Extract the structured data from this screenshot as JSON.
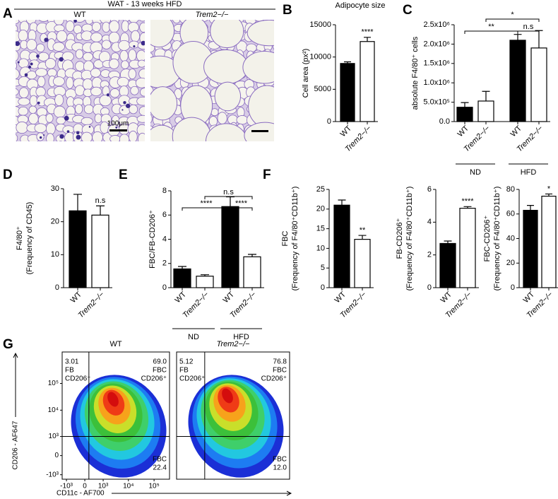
{
  "figure": {
    "panel_labels": [
      "A",
      "B",
      "C",
      "D",
      "E",
      "F",
      "G"
    ],
    "histology": {
      "title": "WAT - 13 weeks HFD",
      "labels": [
        "WT",
        "Trem2−/−"
      ],
      "scale_bar": "100μm"
    }
  },
  "chart_data": [
    {
      "type": "bar",
      "title": "Adipocyte size",
      "ylabel": "Cell area (px²)",
      "categories": [
        "WT",
        "Trem2−/−"
      ],
      "values": [
        9000,
        12400
      ],
      "errors": [
        250,
        650
      ],
      "colors": [
        "#000000",
        "#ffffff"
      ],
      "ylim": [
        0,
        15000
      ],
      "yticks": [
        0,
        5000,
        10000,
        15000
      ],
      "annotations": [
        {
          "text": "****",
          "bar": 1
        }
      ]
    },
    {
      "type": "bar",
      "ylabel": "absolute F4/80⁺ cells",
      "categories": [
        "WT",
        "Trem2−/−",
        "WT",
        "Trem2−/−"
      ],
      "groups": [
        "ND",
        "HFD"
      ],
      "values": [
        370000,
        530000,
        2100000,
        1900000
      ],
      "errors": [
        120000,
        250000,
        150000,
        450000
      ],
      "colors": [
        "#000000",
        "#ffffff",
        "#000000",
        "#ffffff"
      ],
      "ylim": [
        0,
        2500000
      ],
      "yticks": [
        {
          "value": 0,
          "label": "0.0"
        },
        {
          "value": 500000,
          "label": "5.0x10⁵"
        },
        {
          "value": 1000000,
          "label": "1.0x10⁶"
        },
        {
          "value": 1500000,
          "label": "1.5x10⁶"
        },
        {
          "value": 2000000,
          "label": "2.0x10⁶"
        },
        {
          "value": 2500000,
          "label": "2.5x10⁶"
        }
      ],
      "brackets": [
        {
          "text": "**",
          "bars": [
            0,
            2
          ]
        },
        {
          "text": "*",
          "bars": [
            1,
            3
          ]
        },
        {
          "text": "n.s",
          "bars": [
            2,
            3
          ]
        }
      ]
    },
    {
      "type": "bar",
      "ylabel": [
        "F4/80⁺",
        "(Frequency of CD45)"
      ],
      "categories": [
        "WT",
        "Trem2−/−"
      ],
      "values": [
        23.3,
        22
      ],
      "errors": [
        5,
        2.8
      ],
      "colors": [
        "#000000",
        "#ffffff"
      ],
      "ylim": [
        0,
        30
      ],
      "yticks": [
        0,
        10,
        20,
        30
      ],
      "annotations": [
        {
          "text": "n.s",
          "bar": 1
        }
      ]
    },
    {
      "type": "bar",
      "ylabel": "FBC/FB-CD206⁺",
      "categories": [
        "WT",
        "Trem2−/−",
        "WT",
        "Trem2−/−"
      ],
      "groups": [
        "ND",
        "HFD"
      ],
      "values": [
        1.55,
        0.95,
        6.7,
        2.55
      ],
      "errors": [
        0.2,
        0.12,
        0.8,
        0.2
      ],
      "colors": [
        "#000000",
        "#ffffff",
        "#000000",
        "#ffffff"
      ],
      "ylim": [
        0,
        8
      ],
      "yticks": [
        0,
        2,
        4,
        6,
        8
      ],
      "brackets": [
        {
          "text": "****",
          "bars": [
            0,
            2
          ]
        },
        {
          "text": "****",
          "bars": [
            2,
            3
          ]
        },
        {
          "text": "n.s",
          "bars": [
            1,
            3
          ]
        }
      ]
    },
    {
      "type": "bar",
      "ylabel": [
        "FBC",
        "(Frequency of F4/80⁺CD11b⁺)"
      ],
      "categories": [
        "WT",
        "Trem2−/−"
      ],
      "values": [
        21,
        12.3
      ],
      "errors": [
        1.3,
        1
      ],
      "colors": [
        "#000000",
        "#ffffff"
      ],
      "ylim": [
        0,
        25
      ],
      "yticks": [
        0,
        5,
        10,
        15,
        20,
        25
      ],
      "annotations": [
        {
          "text": "**",
          "bar": 1
        }
      ]
    },
    {
      "type": "bar",
      "ylabel": [
        "FB-CD206⁺",
        "(Frequency of F4/80⁺CD11b⁺)"
      ],
      "categories": [
        "WT",
        "Trem2−/−"
      ],
      "values": [
        2.7,
        4.85
      ],
      "errors": [
        0.15,
        0.1
      ],
      "colors": [
        "#000000",
        "#ffffff"
      ],
      "ylim": [
        0,
        6
      ],
      "yticks": [
        0,
        2,
        4,
        6
      ],
      "annotations": [
        {
          "text": "****",
          "bar": 1
        }
      ]
    },
    {
      "type": "bar",
      "ylabel": [
        "FBC-CD206⁺",
        "(Frequency of F4/80⁺CD11b⁺)"
      ],
      "categories": [
        "WT",
        "Trem2−/−"
      ],
      "values": [
        63,
        74.5
      ],
      "errors": [
        4,
        1.8
      ],
      "colors": [
        "#000000",
        "#ffffff"
      ],
      "ylim": [
        0,
        80
      ],
      "yticks": [
        0,
        20,
        40,
        60,
        80
      ],
      "annotations": [
        {
          "text": "*",
          "bar": 1
        }
      ]
    },
    {
      "type": "flow",
      "title": "WT",
      "xlabel": "CD11c - AF700",
      "ylabel": "CD206 - AF647",
      "scale": "asinh",
      "xlim": [
        -1500,
        400000
      ],
      "ylim": [
        -1500,
        1500000
      ],
      "xticks": [
        {
          "value": -1000,
          "label": "-10³"
        },
        0,
        {
          "value": 1000,
          "label": "10³"
        },
        {
          "value": 10000,
          "label": "10⁴"
        },
        {
          "value": 100000,
          "label": "10⁵"
        }
      ],
      "yticks": [
        {
          "value": -1000,
          "label": "-10³"
        },
        0,
        {
          "value": 1000,
          "label": "10³"
        },
        {
          "value": 10000,
          "label": "10⁴"
        },
        {
          "value": 100000,
          "label": "10⁵"
        }
      ],
      "gate": [
        150,
        1000
      ],
      "quadrant_names": [
        [
          "FB",
          "CD206⁺"
        ],
        [
          "FBC",
          "CD206⁺"
        ],
        [
          "FBC"
        ]
      ],
      "values": [
        3.01,
        69.0,
        22.4
      ],
      "value_labels": [
        "3.01",
        "69.0",
        "22.4"
      ]
    },
    {
      "type": "flow",
      "title": "Trem2−/−",
      "scale": "asinh",
      "xlim": [
        -1500,
        400000
      ],
      "ylim": [
        -1500,
        1500000
      ],
      "gate": [
        150,
        1000
      ],
      "quadrant_names": [
        [
          "FB",
          "CD206⁺"
        ],
        [
          "FBC",
          "CD206⁺"
        ],
        [
          "FBC"
        ]
      ],
      "values": [
        5.12,
        76.8,
        12.0
      ],
      "value_labels": [
        "5.12",
        "76.8",
        "12.0"
      ]
    }
  ]
}
